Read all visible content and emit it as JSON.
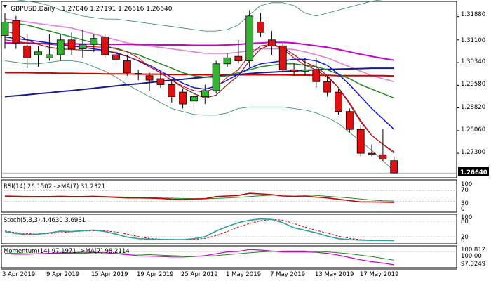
{
  "header": {
    "symbol": "GBPUSD,Daily",
    "ohlc": "1.27046 1.27191 1.26616 1.26640"
  },
  "price_scale": {
    "ticks": [
      "1.31880",
      "1.31100",
      "1.30340",
      "1.29580",
      "1.28820",
      "1.28060",
      "1.27300"
    ],
    "current": "1.26640"
  },
  "rsi": {
    "title": "RSI(14) 26.1502 ->MA(7) 31.2321",
    "ticks": [
      "100",
      "70",
      "30",
      "0"
    ]
  },
  "stoch": {
    "title": "Stoch(5,3,3) 4.4630 3.6931",
    "ticks": [
      "100",
      "80",
      "20",
      "0"
    ]
  },
  "momentum": {
    "title": "Momentum(14) 97.1971 ->MA(7) 98.2114",
    "ticks": [
      "100.812",
      "100.00",
      "97.0249"
    ]
  },
  "time_axis": {
    "labels": [
      "3 Apr 2019",
      "9 Apr 2019",
      "15 Apr 2019",
      "19 Apr 2019",
      "25 Apr 2019",
      "1 May 2019",
      "7 May 2019",
      "13 May 2019",
      "17 May 2019"
    ]
  },
  "colors": {
    "bull": "#32b432",
    "bear": "#e01010",
    "ma_red": "#d00000",
    "ma_navy": "#1a1a8c",
    "ma_blue": "#1010e0",
    "ma_green": "#228b22",
    "ma_magenta": "#cc00cc",
    "ma_pink": "#e080e0",
    "ma_brown": "#8b1a1a",
    "boll": "#2e8b57",
    "grid": "#c0c0c0"
  },
  "chart_data": {
    "type": "candlestick",
    "symbol": "GBPUSD",
    "timeframe": "Daily",
    "dates": [
      "2019-04-02",
      "2019-04-03",
      "2019-04-04",
      "2019-04-05",
      "2019-04-08",
      "2019-04-09",
      "2019-04-10",
      "2019-04-11",
      "2019-04-12",
      "2019-04-15",
      "2019-04-16",
      "2019-04-17",
      "2019-04-18",
      "2019-04-19",
      "2019-04-22",
      "2019-04-23",
      "2019-04-24",
      "2019-04-25",
      "2019-04-26",
      "2019-04-29",
      "2019-04-30",
      "2019-05-01",
      "2019-05-02",
      "2019-05-03",
      "2019-05-06",
      "2019-05-07",
      "2019-05-08",
      "2019-05-09",
      "2019-05-10",
      "2019-05-13",
      "2019-05-14",
      "2019-05-15",
      "2019-05-16",
      "2019-05-17",
      "2019-05-20",
      "2019-05-21"
    ],
    "candles": [
      {
        "o": 1.3125,
        "h": 1.32,
        "l": 1.308,
        "c": 1.317
      },
      {
        "o": 1.3175,
        "h": 1.319,
        "l": 1.308,
        "c": 1.31
      },
      {
        "o": 1.309,
        "h": 1.313,
        "l": 1.3015,
        "c": 1.305
      },
      {
        "o": 1.306,
        "h": 1.309,
        "l": 1.302,
        "c": 1.307
      },
      {
        "o": 1.305,
        "h": 1.313,
        "l": 1.304,
        "c": 1.306
      },
      {
        "o": 1.306,
        "h": 1.313,
        "l": 1.304,
        "c": 1.311
      },
      {
        "o": 1.311,
        "h": 1.3135,
        "l": 1.306,
        "c": 1.308
      },
      {
        "o": 1.308,
        "h": 1.3145,
        "l": 1.305,
        "c": 1.3095
      },
      {
        "o": 1.3095,
        "h": 1.313,
        "l": 1.307,
        "c": 1.3115
      },
      {
        "o": 1.312,
        "h": 1.313,
        "l": 1.305,
        "c": 1.306
      },
      {
        "o": 1.306,
        "h": 1.308,
        "l": 1.303,
        "c": 1.3045
      },
      {
        "o": 1.304,
        "h": 1.306,
        "l": 1.299,
        "c": 1.3
      },
      {
        "o": 1.2995,
        "h": 1.301,
        "l": 1.2975,
        "c": 1.2998
      },
      {
        "o": 1.299,
        "h": 1.3,
        "l": 1.294,
        "c": 1.2975
      },
      {
        "o": 1.298,
        "h": 1.3,
        "l": 1.295,
        "c": 1.296
      },
      {
        "o": 1.296,
        "h": 1.2975,
        "l": 1.29,
        "c": 1.292
      },
      {
        "o": 1.2935,
        "h": 1.2945,
        "l": 1.288,
        "c": 1.2895
      },
      {
        "o": 1.2905,
        "h": 1.295,
        "l": 1.2875,
        "c": 1.292
      },
      {
        "o": 1.292,
        "h": 1.296,
        "l": 1.2895,
        "c": 1.294
      },
      {
        "o": 1.294,
        "h": 1.304,
        "l": 1.293,
        "c": 1.303
      },
      {
        "o": 1.303,
        "h": 1.3065,
        "l": 1.302,
        "c": 1.305
      },
      {
        "o": 1.3055,
        "h": 1.311,
        "l": 1.303,
        "c": 1.304
      },
      {
        "o": 1.304,
        "h": 1.321,
        "l": 1.302,
        "c": 1.319
      },
      {
        "o": 1.317,
        "h": 1.32,
        "l": 1.312,
        "c": 1.3135
      },
      {
        "o": 1.311,
        "h": 1.314,
        "l": 1.306,
        "c": 1.309
      },
      {
        "o": 1.309,
        "h": 1.31,
        "l": 1.3,
        "c": 1.301
      },
      {
        "o": 1.301,
        "h": 1.303,
        "l": 1.299,
        "c": 1.3005
      },
      {
        "o": 1.3005,
        "h": 1.305,
        "l": 1.299,
        "c": 1.301
      },
      {
        "o": 1.301,
        "h": 1.305,
        "l": 1.295,
        "c": 1.297
      },
      {
        "o": 1.297,
        "h": 1.299,
        "l": 1.292,
        "c": 1.2935
      },
      {
        "o": 1.2935,
        "h": 1.2945,
        "l": 1.286,
        "c": 1.287
      },
      {
        "o": 1.287,
        "h": 1.288,
        "l": 1.28,
        "c": 1.281
      },
      {
        "o": 1.281,
        "h": 1.2825,
        "l": 1.272,
        "c": 1.273
      },
      {
        "o": 1.273,
        "h": 1.276,
        "l": 1.272,
        "c": 1.2725
      },
      {
        "o": 1.2725,
        "h": 1.281,
        "l": 1.2705,
        "c": 1.271
      },
      {
        "o": 1.2705,
        "h": 1.2719,
        "l": 1.2662,
        "c": 1.2664
      }
    ],
    "ylim": [
      1.2662,
      1.3225
    ],
    "indicators": {
      "ma_fast_red": [
        1.311,
        1.3105,
        1.31,
        1.3098,
        1.3095,
        1.3092,
        1.309,
        1.3088,
        1.3087,
        1.3085,
        1.3083,
        1.307,
        1.305,
        1.302,
        1.3,
        1.2975,
        1.2955,
        1.294,
        1.2935,
        1.295,
        1.2985,
        1.301,
        1.306,
        1.309,
        1.3095,
        1.308,
        1.305,
        1.3025,
        1.301,
        1.2985,
        1.295,
        1.29,
        1.284,
        1.279,
        1.276,
        1.273
      ],
      "ma_mid_brown": [
        1.314,
        1.313,
        1.311,
        1.3095,
        1.3085,
        1.308,
        1.3078,
        1.3076,
        1.3075,
        1.3072,
        1.3068,
        1.3055,
        1.304,
        1.302,
        1.3,
        1.2975,
        1.295,
        1.293,
        1.2915,
        1.2925,
        1.296,
        1.299,
        1.304,
        1.308,
        1.3095,
        1.3085,
        1.306,
        1.3035,
        1.302,
        1.299,
        1.295,
        1.2895,
        1.2835,
        1.279,
        1.276,
        1.2735
      ],
      "ma_blue": [
        1.312,
        1.3115,
        1.311,
        1.3105,
        1.31,
        1.3095,
        1.309,
        1.3085,
        1.308,
        1.3075,
        1.3065,
        1.3055,
        1.304,
        1.3025,
        1.3005,
        1.2985,
        1.2965,
        1.295,
        1.2945,
        1.2955,
        1.2975,
        1.2995,
        1.3015,
        1.303,
        1.3035,
        1.304,
        1.3045,
        1.3045,
        1.304,
        1.3025,
        1.2995,
        1.296,
        1.292,
        1.288,
        1.2845,
        1.281
      ],
      "ma_green": [
        1.317,
        1.3165,
        1.316,
        1.315,
        1.314,
        1.313,
        1.312,
        1.311,
        1.31,
        1.309,
        1.308,
        1.307,
        1.306,
        1.3045,
        1.303,
        1.3015,
        1.3,
        1.299,
        1.2985,
        1.2985,
        1.299,
        1.3,
        1.301,
        1.302,
        1.3025,
        1.303,
        1.303,
        1.3025,
        1.302,
        1.301,
        1.2995,
        1.298,
        1.296,
        1.2945,
        1.293,
        1.2915
      ],
      "ma_pink": [
        1.318,
        1.3175,
        1.317,
        1.3165,
        1.316,
        1.3155,
        1.315,
        1.314,
        1.313,
        1.312,
        1.311,
        1.31,
        1.3095,
        1.309,
        1.3085,
        1.308,
        1.3075,
        1.307,
        1.3065,
        1.3065,
        1.3065,
        1.3068,
        1.3075,
        1.308,
        1.308,
        1.308,
        1.3078,
        1.307,
        1.306,
        1.305,
        1.3035,
        1.302,
        1.3005,
        1.299,
        1.298,
        1.297
      ],
      "ma_magenta": [
        1.31,
        1.31,
        1.31,
        1.3098,
        1.3098,
        1.3097,
        1.3097,
        1.3096,
        1.3096,
        1.3095,
        1.3095,
        1.3095,
        1.3094,
        1.3094,
        1.3093,
        1.3093,
        1.3093,
        1.3092,
        1.3092,
        1.3092,
        1.3093,
        1.3095,
        1.3098,
        1.31,
        1.3102,
        1.3102,
        1.31,
        1.3095,
        1.309,
        1.3085,
        1.3078,
        1.307,
        1.3062,
        1.3055,
        1.3048,
        1.3042
      ],
      "ma_red_flat": [
        1.3,
        1.3,
        1.3,
        1.2999,
        1.2999,
        1.2998,
        1.2998,
        1.2997,
        1.2997,
        1.2996,
        1.2996,
        1.2996,
        1.2995,
        1.2995,
        1.2995,
        1.2994,
        1.2994,
        1.2994,
        1.2993,
        1.2993,
        1.2993,
        1.2993,
        1.2993,
        1.2993,
        1.2993,
        1.2993,
        1.2992,
        1.2992,
        1.2991,
        1.2991,
        1.299,
        1.299,
        1.299,
        1.299,
        1.299,
        1.2989
      ],
      "ma_navy": [
        1.292,
        1.2923,
        1.2926,
        1.293,
        1.2933,
        1.2937,
        1.294,
        1.2944,
        1.2948,
        1.2952,
        1.2956,
        1.296,
        1.2963,
        1.2967,
        1.2971,
        1.2975,
        1.2978,
        1.2982,
        1.2985,
        1.2988,
        1.2991,
        1.2994,
        1.2997,
        1.3,
        1.3002,
        1.3004,
        1.3006,
        1.3008,
        1.301,
        1.3011,
        1.3012,
        1.3013,
        1.3014,
        1.3015,
        1.3015,
        1.3015
      ],
      "boll_upper": [
        1.325,
        1.3245,
        1.324,
        1.3235,
        1.3225,
        1.321,
        1.32,
        1.319,
        1.3185,
        1.318,
        1.318,
        1.3175,
        1.317,
        1.3165,
        1.316,
        1.3155,
        1.315,
        1.3145,
        1.314,
        1.314,
        1.3145,
        1.316,
        1.3195,
        1.3225,
        1.3235,
        1.3235,
        1.3225,
        1.32,
        1.319,
        1.32,
        1.321,
        1.322,
        1.323,
        1.324,
        1.3245,
        1.325
      ],
      "boll_lower": [
        1.304,
        1.3035,
        1.303,
        1.303,
        1.3035,
        1.304,
        1.304,
        1.3035,
        1.302,
        1.3005,
        1.2985,
        1.296,
        1.294,
        1.292,
        1.29,
        1.288,
        1.287,
        1.286,
        1.2858,
        1.2858,
        1.2865,
        1.288,
        1.2885,
        1.2885,
        1.2885,
        1.2885,
        1.288,
        1.2875,
        1.2865,
        1.285,
        1.283,
        1.28,
        1.277,
        1.274,
        1.2705,
        1.267
      ]
    },
    "rsi": {
      "ylim": [
        0,
        100
      ],
      "levels": [
        70,
        30
      ],
      "rsi": [
        50,
        49,
        47,
        48,
        48,
        49,
        48,
        48,
        49,
        47,
        45,
        43,
        43,
        42,
        41,
        38,
        37,
        39,
        40,
        48,
        50,
        52,
        60,
        58,
        55,
        50,
        49,
        50,
        46,
        43,
        38,
        33,
        28,
        28,
        27,
        26.15
      ],
      "ma": [
        49,
        49,
        49,
        48,
        48,
        48,
        48,
        48,
        48,
        48,
        47,
        46,
        45,
        44,
        43,
        42,
        41,
        40,
        40,
        41,
        43,
        45,
        48,
        51,
        53,
        54,
        54,
        54,
        52,
        49,
        46,
        43,
        39,
        35,
        32,
        31.23
      ]
    },
    "stoch": {
      "ylim": [
        0,
        100
      ],
      "levels": [
        80,
        20
      ],
      "k": [
        40,
        32,
        28,
        30,
        35,
        42,
        40,
        44,
        46,
        40,
        30,
        18,
        12,
        10,
        9,
        8,
        8,
        12,
        20,
        42,
        60,
        75,
        85,
        90,
        88,
        75,
        55,
        45,
        35,
        22,
        12,
        8,
        6,
        5,
        5,
        4.46
      ],
      "d": [
        42,
        36,
        32,
        30,
        32,
        36,
        39,
        42,
        43,
        43,
        38,
        30,
        20,
        13,
        10,
        9,
        8,
        9,
        13,
        24,
        40,
        58,
        72,
        83,
        88,
        85,
        72,
        58,
        45,
        34,
        22,
        13,
        8,
        6,
        5,
        3.69
      ]
    },
    "momentum": {
      "ylim": [
        96.9,
        101.0
      ],
      "levels": [
        100.0
      ],
      "mom": [
        99.6,
        99.5,
        99.5,
        99.6,
        99.7,
        99.8,
        99.8,
        99.9,
        99.9,
        99.8,
        99.6,
        99.4,
        99.2,
        99.1,
        99.0,
        98.9,
        98.9,
        99.0,
        99.2,
        99.6,
        100.0,
        100.1,
        100.5,
        100.4,
        100.2,
        100.0,
        100.0,
        100.0,
        99.9,
        99.7,
        99.3,
        98.8,
        98.3,
        97.9,
        97.6,
        97.1971
      ],
      "ma": [
        99.7,
        99.7,
        99.6,
        99.6,
        99.6,
        99.7,
        99.7,
        99.7,
        99.8,
        99.8,
        99.7,
        99.6,
        99.5,
        99.4,
        99.3,
        99.2,
        99.1,
        99.1,
        99.1,
        99.2,
        99.4,
        99.6,
        99.8,
        100.0,
        100.1,
        100.2,
        100.2,
        100.2,
        100.1,
        100.0,
        99.8,
        99.6,
        99.3,
        99.0,
        98.6,
        98.2114
      ]
    }
  }
}
